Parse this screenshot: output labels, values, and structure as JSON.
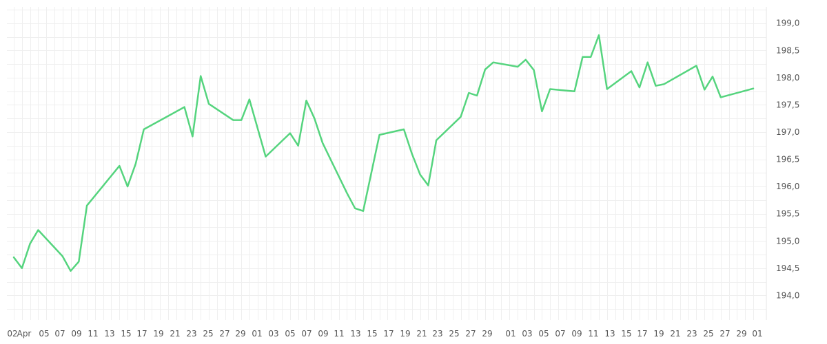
{
  "chart_data": {
    "type": "line",
    "series": [
      {
        "color": "#55d47e",
        "values": [
          194.7,
          194.5,
          194.95,
          195.2,
          194.72,
          194.45,
          194.62,
          195.65,
          196.38,
          196.0,
          196.42,
          197.05,
          197.46,
          196.92,
          198.03,
          197.52,
          197.22,
          197.22,
          197.6,
          196.55,
          196.98,
          196.75,
          197.58,
          197.25,
          196.8,
          195.88,
          195.6,
          195.55,
          196.95,
          197.05,
          196.6,
          196.22,
          196.02,
          196.85,
          197.28,
          197.72,
          197.67,
          198.15,
          198.28,
          198.2,
          198.33,
          198.14,
          197.38,
          197.79,
          197.75,
          198.38,
          198.38,
          198.78,
          197.79,
          198.12,
          197.82,
          198.28,
          197.85,
          197.88,
          198.22,
          197.78,
          198.02,
          197.64,
          197.8
        ],
        "x": [
          "Apr 02",
          "Apr 03",
          "Apr 04",
          "Apr 05",
          "Apr 08",
          "Apr 09",
          "Apr 10",
          "Apr 11",
          "Apr 15",
          "Apr 16",
          "Apr 17",
          "Apr 18",
          "Apr 23",
          "Apr 24",
          "Apr 25",
          "Apr 26",
          "Apr 29",
          "Apr 30",
          "May 01",
          "May 03",
          "May 06",
          "May 07",
          "May 08",
          "May 09",
          "May 10",
          "May 13",
          "May 14",
          "May 15",
          "May 17",
          "May 20",
          "May 21",
          "May 22",
          "May 23",
          "May 24",
          "May 27",
          "May 28",
          "May 29",
          "May 30",
          "May 31",
          "Jun 03",
          "Jun 04",
          "Jun 05",
          "Jun 06",
          "Jun 07",
          "Jun 10",
          "Jun 11",
          "Jun 12",
          "Jun 13",
          "Jun 14",
          "Jun 17",
          "Jun 18",
          "Jun 19",
          "Jun 20",
          "Jun 21",
          "Jun 25",
          "Jun 26",
          "Jun 27",
          "Jun 28",
          "Jul 02"
        ]
      }
    ],
    "y_ticks": [
      "194,0",
      "194,5",
      "195,0",
      "195,5",
      "196,0",
      "196,5",
      "197,0",
      "197,5",
      "198,0",
      "198,5",
      "199,0"
    ],
    "y_tick_values": [
      194.0,
      194.5,
      195.0,
      195.5,
      196.0,
      196.5,
      197.0,
      197.5,
      198.0,
      198.5,
      199.0
    ],
    "ylim": [
      193.55,
      199.3
    ],
    "x_ticks": [
      "02",
      "Apr",
      "05",
      "07",
      "09",
      "11",
      "13",
      "15",
      "17",
      "19",
      "21",
      "23",
      "25",
      "27",
      "29",
      "01",
      "03",
      "05",
      "07",
      "09",
      "11",
      "13",
      "15",
      "17",
      "19",
      "21",
      "23",
      "25",
      "27",
      "29",
      "01",
      "03",
      "05",
      "07",
      "09",
      "11",
      "13",
      "15",
      "17",
      "19",
      "21",
      "23",
      "25",
      "27",
      "29",
      "01"
    ],
    "grid": true,
    "y_axis_position": "right"
  }
}
